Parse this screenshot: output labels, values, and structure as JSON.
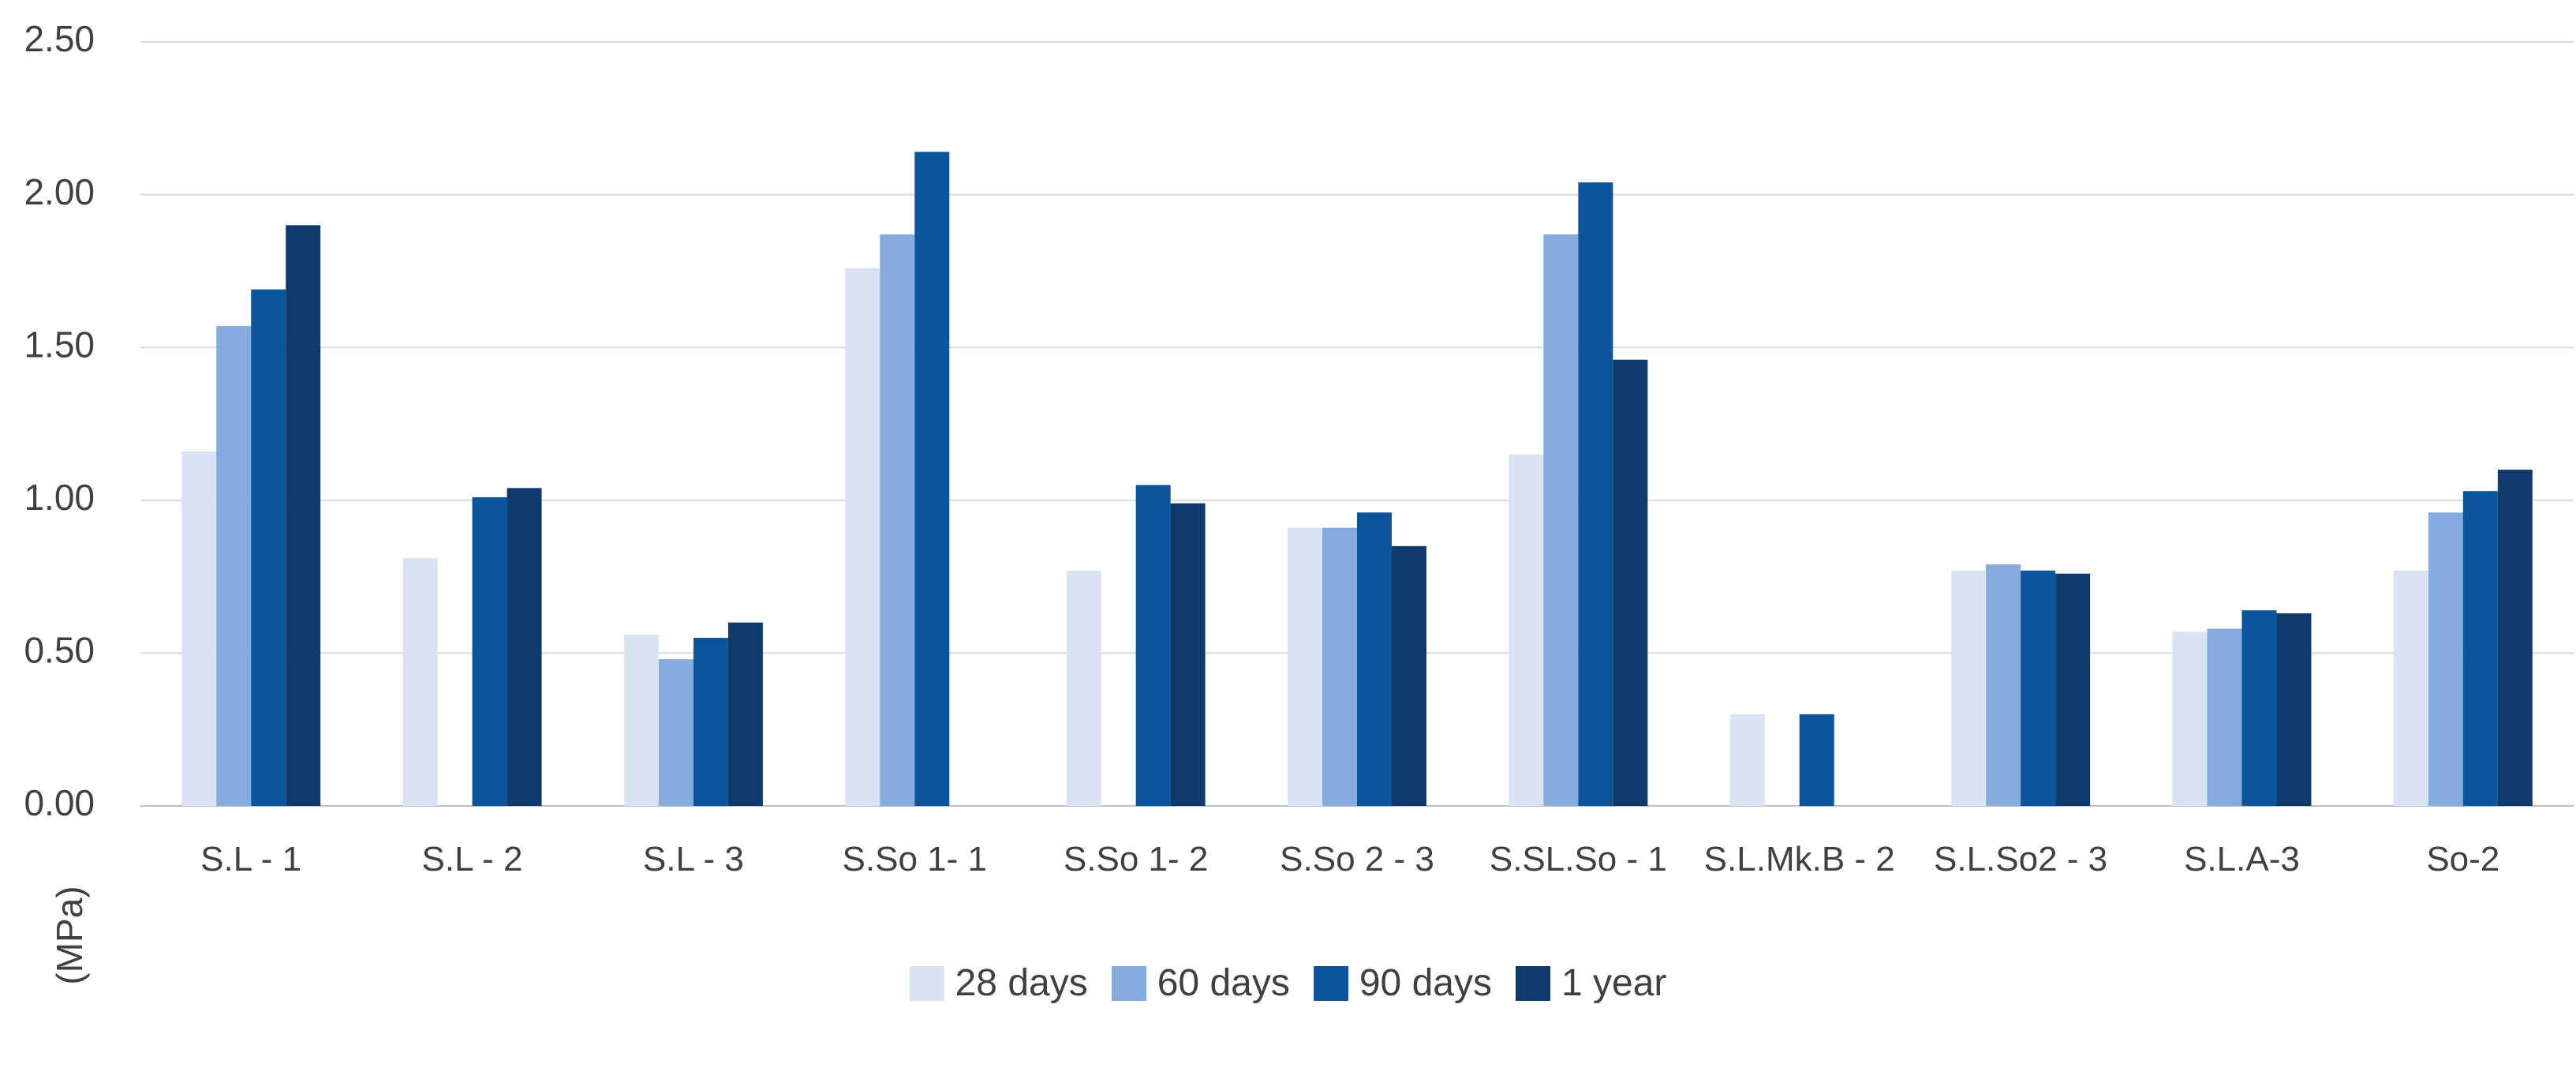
{
  "chart_data": {
    "type": "bar",
    "y_label": "(MPa)",
    "categories": [
      "S.L - 1",
      "S.L - 2",
      "S.L - 3",
      "S.So 1- 1",
      "S.So 1- 2",
      "S.So 2 - 3",
      "S.SL.So - 1",
      "S.L.Mk.B - 2",
      "S.L.So2 - 3",
      "S.L.A-3",
      "So-2"
    ],
    "series": [
      {
        "name": "28 days",
        "color": "#dae3f3",
        "values": [
          1.16,
          0.81,
          0.56,
          1.76,
          0.77,
          0.91,
          1.15,
          0.3,
          0.77,
          0.57,
          0.77
        ]
      },
      {
        "name": "60 days",
        "color": "#86abdf",
        "values": [
          1.57,
          null,
          0.48,
          1.87,
          null,
          0.91,
          1.87,
          null,
          0.79,
          0.58,
          0.96
        ]
      },
      {
        "name": "90 days",
        "color": "#0b559c",
        "values": [
          1.69,
          1.01,
          0.55,
          2.14,
          1.05,
          0.96,
          2.04,
          0.3,
          0.77,
          0.64,
          1.03
        ]
      },
      {
        "name": "1 year",
        "color": "#0f3a6c",
        "values": [
          1.9,
          1.04,
          0.6,
          null,
          0.99,
          0.85,
          1.46,
          null,
          0.76,
          0.63,
          1.1
        ]
      }
    ],
    "ylim": [
      0,
      2.5
    ],
    "yticks": [
      {
        "value": 0,
        "label": "0.00"
      },
      {
        "value": 0.5,
        "label": "0.50"
      },
      {
        "value": 1,
        "label": "1.00"
      },
      {
        "value": 1.5,
        "label": "1.50"
      },
      {
        "value": 2,
        "label": "2.00"
      },
      {
        "value": 2.5,
        "label": "2.50"
      }
    ],
    "grid": true
  }
}
